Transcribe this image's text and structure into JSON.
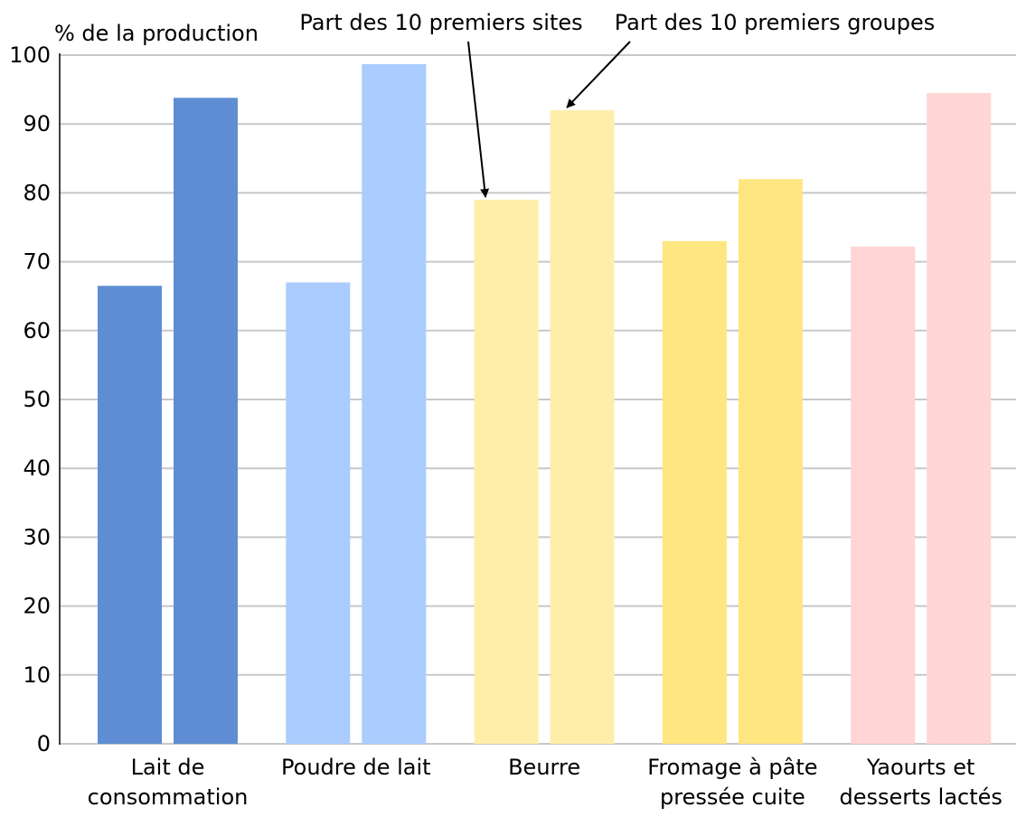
{
  "chart_data": {
    "type": "bar",
    "ylabel": "% de la production",
    "ylim": [
      0,
      100
    ],
    "yticks": [
      "0",
      "10",
      "20",
      "30",
      "40",
      "50",
      "60",
      "70",
      "80",
      "90",
      "100"
    ],
    "grid": true,
    "categories": [
      [
        "Lait de",
        "consommation"
      ],
      [
        "Poudre de lait"
      ],
      [
        "Beurre"
      ],
      [
        "Fromage à pâte",
        "pressée cuite"
      ],
      [
        "Yaourts et",
        "desserts lactés"
      ]
    ],
    "series": [
      {
        "name": "Part des 10 premiers sites",
        "values": [
          66.5,
          67,
          79,
          73,
          72.2
        ]
      },
      {
        "name": "Part des 10 premiers groupes",
        "values": [
          93.8,
          98.7,
          92,
          82,
          94.5
        ]
      }
    ],
    "bar_colors": [
      "#5f8dd3",
      "#aaccff",
      "#ffeeaa",
      "#ffe680",
      "#ffd5d5"
    ],
    "annotations": [
      {
        "text": "Part des 10 premiers sites",
        "target_category": 2,
        "target_series": 0
      },
      {
        "text": "Part des 10 premiers groupes",
        "target_category": 2,
        "target_series": 1
      }
    ]
  }
}
